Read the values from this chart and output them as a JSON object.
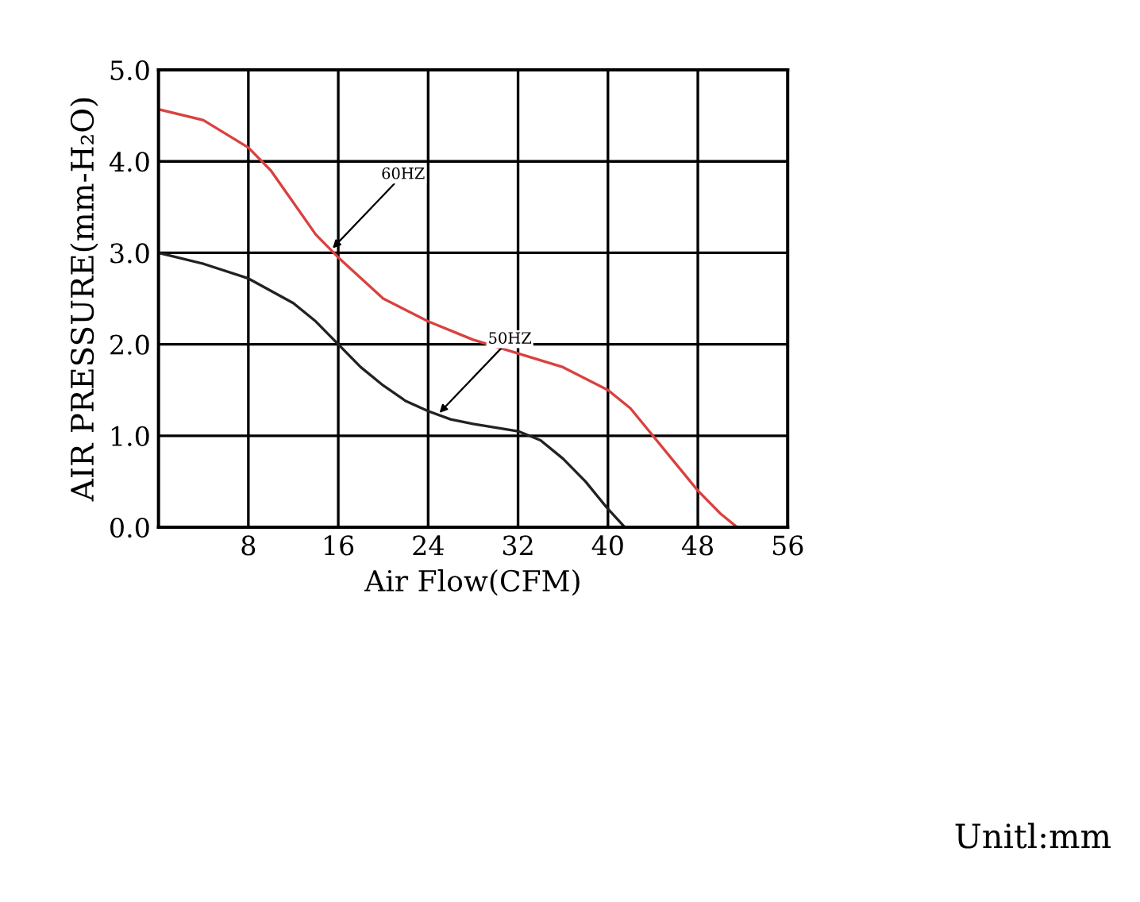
{
  "chart_data": {
    "type": "line",
    "xlabel": "Air Flow(CFM)",
    "ylabel": "AIR PRESSURE(mm-H₂O)",
    "xlim": [
      0,
      56
    ],
    "ylim": [
      0,
      5
    ],
    "xticks": [
      {
        "value": 0,
        "label": null
      },
      8,
      16,
      24,
      32,
      40,
      48,
      56
    ],
    "yticks": [
      {
        "value": 0,
        "label": "0.0"
      },
      {
        "value": 1,
        "label": "1.0"
      },
      {
        "value": 2,
        "label": "2.0"
      },
      {
        "value": 3,
        "label": "3.0"
      },
      {
        "value": 4,
        "label": "4.0"
      },
      {
        "value": 5,
        "label": "5.0"
      }
    ],
    "grid": true,
    "series": [
      {
        "color": "#d9413f",
        "x": [
          0,
          4,
          8,
          10,
          12,
          14,
          16,
          20,
          24,
          28,
          32,
          36,
          40,
          42,
          44,
          46,
          48,
          50,
          51.5
        ],
        "values": [
          4.57,
          4.45,
          4.15,
          3.9,
          3.55,
          3.2,
          2.95,
          2.5,
          2.25,
          2.05,
          1.9,
          1.75,
          1.5,
          1.3,
          1.0,
          0.7,
          0.4,
          0.15,
          0
        ]
      },
      {
        "color": "#222222",
        "x": [
          0,
          4,
          8,
          12,
          14,
          16,
          18,
          20,
          22,
          24,
          26,
          28,
          32,
          34,
          36,
          38,
          40,
          41.5
        ],
        "values": [
          3.0,
          2.88,
          2.72,
          2.45,
          2.25,
          2.0,
          1.75,
          1.55,
          1.38,
          1.27,
          1.18,
          1.13,
          1.05,
          0.95,
          0.75,
          0.5,
          0.2,
          0
        ]
      }
    ],
    "annotations": [
      {
        "text": "60HZ",
        "x": 15.5,
        "y": 3.05
      },
      {
        "text": "50HZ",
        "x": 25,
        "y": 1.25
      },
      "Unitl:mm"
    ]
  }
}
